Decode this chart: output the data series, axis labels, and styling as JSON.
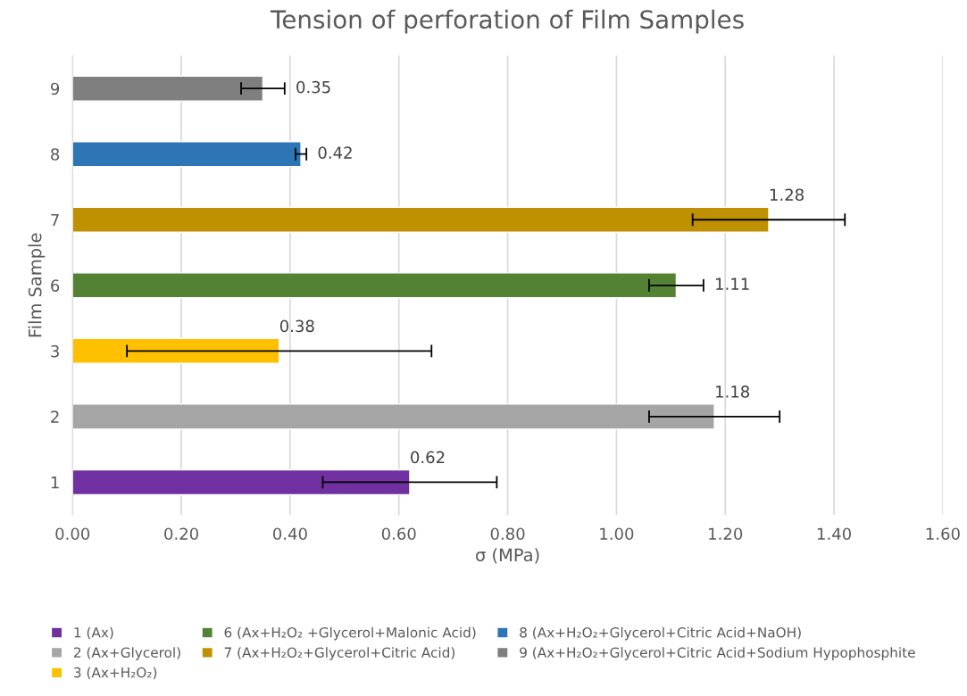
{
  "chart_data": {
    "type": "bar",
    "orientation": "horizontal",
    "title": "Tension of perforation of Film Samples",
    "xlabel": "σ (MPa)",
    "ylabel": "Film Sample",
    "categories": [
      "9",
      "8",
      "7",
      "6",
      "3",
      "2",
      "1"
    ],
    "series": [
      {
        "name": "1 (Ax)",
        "color": "#7030a0",
        "values": [
          null,
          null,
          null,
          null,
          null,
          null,
          0.62
        ],
        "errors": [
          null,
          null,
          null,
          null,
          null,
          null,
          0.16
        ]
      },
      {
        "name": "2 (Ax+Glycerol)",
        "color": "#a5a5a5",
        "values": [
          null,
          null,
          null,
          null,
          null,
          1.18,
          null
        ],
        "errors": [
          null,
          null,
          null,
          null,
          null,
          0.12,
          null
        ]
      },
      {
        "name": "3 (Ax+H₂O₂)",
        "color": "#ffc000",
        "values": [
          null,
          null,
          null,
          null,
          0.38,
          null,
          null
        ],
        "errors": [
          null,
          null,
          null,
          null,
          0.28,
          null,
          null
        ]
      },
      {
        "name": "6 (Ax+H₂O₂ +Glycerol+Malonic Acid)",
        "color": "#548235",
        "values": [
          null,
          null,
          null,
          1.11,
          null,
          null,
          null
        ],
        "errors": [
          null,
          null,
          null,
          0.05,
          null,
          null,
          null
        ]
      },
      {
        "name": "7 (Ax+H₂O₂+Glycerol+Citric Acid)",
        "color": "#bf9000",
        "values": [
          null,
          null,
          1.28,
          null,
          null,
          null,
          null
        ],
        "errors": [
          null,
          null,
          0.14,
          null,
          null,
          null,
          null
        ]
      },
      {
        "name": "8 (Ax+H₂O₂+Glycerol+Citric Acid+NaOH)",
        "color": "#2e75b6",
        "values": [
          null,
          0.42,
          null,
          null,
          null,
          null,
          null
        ],
        "errors": [
          null,
          0.01,
          null,
          null,
          null,
          null,
          null
        ]
      },
      {
        "name": "9 (Ax+H₂O₂+Glycerol+Citric Acid+Sodium Hypophosphite",
        "color": "#7f7f7f",
        "values": [
          0.35,
          null,
          null,
          null,
          null,
          null,
          null
        ],
        "errors": [
          0.04,
          null,
          null,
          null,
          null,
          null,
          null
        ]
      }
    ],
    "xlim": [
      0,
      1.6
    ],
    "xticks": [
      {
        "value": 0,
        "label": "0.00"
      },
      {
        "value": 0.2,
        "label": "0.20"
      },
      {
        "value": 0.4,
        "label": "0.40"
      },
      {
        "value": 0.6,
        "label": "0.60"
      },
      {
        "value": 0.8,
        "label": "0.80"
      },
      {
        "value": 1.0,
        "label": "1.00"
      },
      {
        "value": 1.2,
        "label": "1.20"
      },
      {
        "value": 1.4,
        "label": "1.40"
      },
      {
        "value": 1.6,
        "label": "1.60"
      }
    ],
    "grid": "x",
    "legend": "bottom",
    "data_labels": true
  }
}
